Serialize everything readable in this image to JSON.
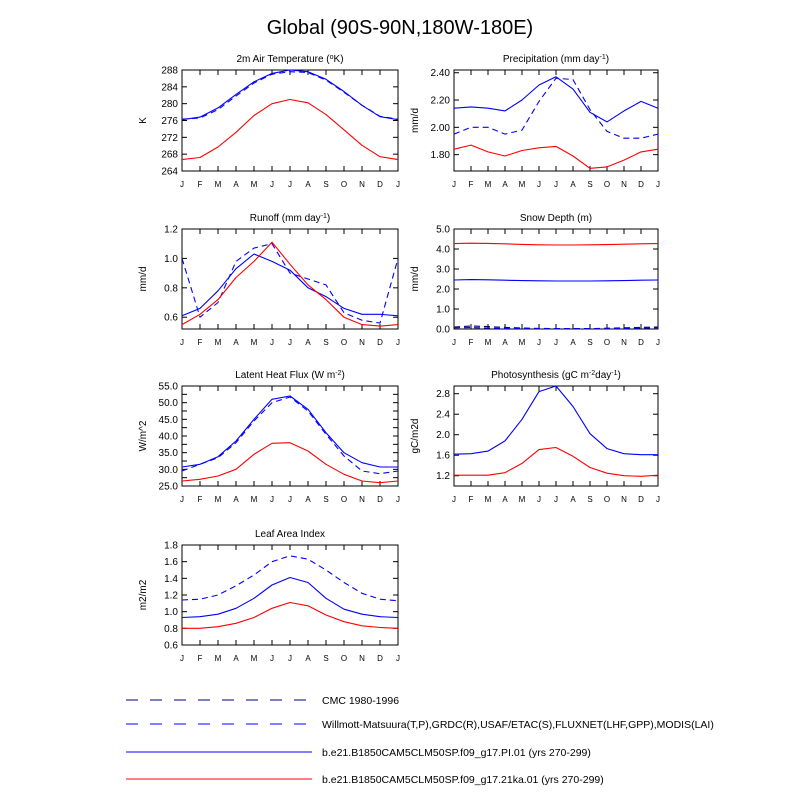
{
  "page": {
    "title": "Global (90S-90N,180W-180E)"
  },
  "months": [
    "J",
    "F",
    "M",
    "A",
    "M",
    "J",
    "J",
    "A",
    "S",
    "O",
    "N",
    "D",
    "J"
  ],
  "colors": {
    "blue": "#0000ff",
    "red": "#ff0000",
    "black": "#000000"
  },
  "legend": [
    {
      "label": "CMC 1980-1996",
      "color": "#000080",
      "dash": true
    },
    {
      "label": "Willmott-Matsuura(T,P),GRDC(R),USAF/ETAC(S),FLUXNET(LHF,GPP),MODIS(LAI)",
      "color": "#0000ff",
      "dash": true
    },
    {
      "label": "b.e21.B1850CAM5CLM50SP.f09_g17.PI.01 (yrs 270-299)",
      "color": "#0000ff",
      "dash": false
    },
    {
      "label": "b.e21.B1850CAM5CLM50SP.f09_g17.21ka.01 (yrs 270-299)",
      "color": "#ff0000",
      "dash": false
    }
  ],
  "chart_data": [
    {
      "type": "line",
      "title": "2m Air Temperature (",
      "title_sup": "o",
      "title_end": "K)",
      "ylabel": "K",
      "ylim": [
        264,
        288
      ],
      "yticks": [
        264,
        268,
        272,
        276,
        280,
        284,
        288
      ],
      "ytick_labels": [
        "264",
        "268",
        "272",
        "276",
        "280",
        "284",
        "288"
      ],
      "series": [
        {
          "name": "Willmott-Matsuura",
          "color": "#0000ff",
          "dash": true,
          "values": [
            276.3,
            276.6,
            278.6,
            281.8,
            284.9,
            287.0,
            287.6,
            287.4,
            285.6,
            282.7,
            279.6,
            277.0,
            276.3
          ]
        },
        {
          "name": "PI.01",
          "color": "#0000ff",
          "dash": false,
          "values": [
            276.2,
            276.8,
            279.0,
            282.2,
            285.2,
            287.2,
            288.0,
            287.6,
            285.8,
            282.9,
            279.6,
            276.9,
            276.2
          ]
        },
        {
          "name": "21ka.01",
          "color": "#ff0000",
          "dash": false,
          "values": [
            266.7,
            267.2,
            269.7,
            273.2,
            277.2,
            280.0,
            281.0,
            280.2,
            277.4,
            273.8,
            270.1,
            267.4,
            266.7
          ]
        }
      ]
    },
    {
      "type": "line",
      "title": "Precipitation (mm day",
      "title_sup": "-1",
      "title_end": ")",
      "ylabel": "mm/d",
      "ylim": [
        1.68,
        2.42
      ],
      "yticks": [
        1.8,
        2.0,
        2.2,
        2.4
      ],
      "ytick_labels": [
        "1.80",
        "2.00",
        "2.20",
        "2.40"
      ],
      "series": [
        {
          "name": "Willmott-Matsuura",
          "color": "#0000ff",
          "dash": true,
          "values": [
            1.95,
            2.0,
            2.0,
            1.95,
            1.98,
            2.19,
            2.36,
            2.35,
            2.13,
            1.97,
            1.92,
            1.92,
            1.95
          ]
        },
        {
          "name": "PI.01",
          "color": "#0000ff",
          "dash": false,
          "values": [
            2.14,
            2.15,
            2.14,
            2.12,
            2.2,
            2.31,
            2.37,
            2.28,
            2.11,
            2.04,
            2.12,
            2.19,
            2.14
          ]
        },
        {
          "name": "21ka.01",
          "color": "#ff0000",
          "dash": false,
          "values": [
            1.84,
            1.87,
            1.82,
            1.79,
            1.83,
            1.85,
            1.86,
            1.79,
            1.7,
            1.71,
            1.76,
            1.82,
            1.84
          ]
        }
      ]
    },
    {
      "type": "line",
      "title": "Runoff (mm day",
      "title_sup": "-1",
      "title_end": ")",
      "ylabel": "mm/d",
      "ylim": [
        0.52,
        1.2
      ],
      "yticks": [
        0.6,
        0.8,
        1.0,
        1.2
      ],
      "ytick_labels": [
        "0.6",
        "0.8",
        "1.0",
        "1.2"
      ],
      "series": [
        {
          "name": "Willmott-Matsuura",
          "color": "#0000ff",
          "dash": true,
          "values": [
            1.0,
            0.6,
            0.7,
            0.98,
            1.07,
            1.1,
            0.9,
            0.86,
            0.82,
            0.63,
            0.58,
            0.56,
            1.0
          ]
        },
        {
          "name": "PI.01",
          "color": "#0000ff",
          "dash": false,
          "values": [
            0.61,
            0.66,
            0.78,
            0.93,
            1.03,
            0.98,
            0.92,
            0.8,
            0.74,
            0.66,
            0.62,
            0.62,
            0.61
          ]
        },
        {
          "name": "21ka.01",
          "color": "#ff0000",
          "dash": false,
          "values": [
            0.55,
            0.62,
            0.72,
            0.87,
            0.98,
            1.11,
            0.96,
            0.82,
            0.72,
            0.6,
            0.55,
            0.54,
            0.55
          ]
        }
      ]
    },
    {
      "type": "line",
      "title": "Snow Depth (m)",
      "title_sup": "",
      "title_end": "",
      "ylabel": "mm/d",
      "ylim": [
        0,
        5
      ],
      "yticks": [
        0,
        1,
        2,
        3,
        4,
        5
      ],
      "ytick_labels": [
        "0.0",
        "1.0",
        "2.0",
        "3.0",
        "4.0",
        "5.0"
      ],
      "series": [
        {
          "name": "CMC 1980-1996",
          "color": "#000080",
          "dash": true,
          "values": [
            0.1,
            0.15,
            0.12,
            0.08,
            0.05,
            0.03,
            0.02,
            0.02,
            0.02,
            0.04,
            0.06,
            0.08,
            0.1
          ]
        },
        {
          "name": "Willmott-Matsuura",
          "color": "#0000ff",
          "dash": true,
          "values": [
            0.06,
            0.07,
            0.05,
            0.03,
            0.02,
            0.01,
            0.01,
            0.01,
            0.01,
            0.02,
            0.03,
            0.05,
            0.06
          ]
        },
        {
          "name": "PI.01",
          "color": "#0000ff",
          "dash": false,
          "values": [
            2.45,
            2.47,
            2.46,
            2.44,
            2.42,
            2.41,
            2.4,
            2.4,
            2.4,
            2.41,
            2.42,
            2.44,
            2.45
          ]
        },
        {
          "name": "21ka.01",
          "color": "#ff0000",
          "dash": false,
          "values": [
            4.27,
            4.29,
            4.28,
            4.26,
            4.23,
            4.21,
            4.2,
            4.2,
            4.21,
            4.22,
            4.24,
            4.26,
            4.27
          ]
        }
      ]
    },
    {
      "type": "line",
      "title": "Latent Heat Flux (W m",
      "title_sup": "-2",
      "title_end": ")",
      "ylabel": "W/m^2",
      "ylim": [
        25,
        55
      ],
      "yticks": [
        25,
        27.5,
        30,
        32.5,
        35,
        37.5,
        40,
        42.5,
        45,
        47.5,
        50,
        52.5,
        55
      ],
      "ytick_labels": [
        "25.0",
        "",
        "30.0",
        "",
        "35.0",
        "",
        "40.0",
        "",
        "45.0",
        "",
        "50.0",
        "",
        "55.0"
      ],
      "series": [
        {
          "name": "Willmott-Matsuura",
          "color": "#0000ff",
          "dash": true,
          "values": [
            29.5,
            31.5,
            33.5,
            38.0,
            44.5,
            50.0,
            51.7,
            47.5,
            40.5,
            34.0,
            29.5,
            28.7,
            29.5
          ]
        },
        {
          "name": "PI.01",
          "color": "#0000ff",
          "dash": false,
          "values": [
            30.7,
            31.5,
            33.8,
            38.5,
            45.0,
            51.0,
            52.0,
            48.0,
            41.0,
            35.0,
            32.0,
            30.7,
            30.7
          ]
        },
        {
          "name": "21ka.01",
          "color": "#ff0000",
          "dash": false,
          "values": [
            26.5,
            27.0,
            28.0,
            30.0,
            34.5,
            37.8,
            38.0,
            35.5,
            31.5,
            28.5,
            26.5,
            26.0,
            26.5
          ]
        }
      ]
    },
    {
      "type": "line",
      "title": "Photosynthesis (gC m",
      "title_sup": "-2",
      "title_mid": "day",
      "title_sup2": "-1",
      "title_end": ")",
      "ylabel": "gC/m2d",
      "ylim": [
        1.0,
        2.95
      ],
      "yticks": [
        1.2,
        1.6,
        2.0,
        2.4,
        2.8
      ],
      "ytick_labels": [
        "1.2",
        "1.6",
        "2.0",
        "2.4",
        "2.8"
      ],
      "series": [
        {
          "name": "PI.01",
          "color": "#0000ff",
          "dash": false,
          "values": [
            1.62,
            1.63,
            1.68,
            1.88,
            2.3,
            2.84,
            2.95,
            2.55,
            2.02,
            1.73,
            1.63,
            1.61,
            1.61
          ]
        },
        {
          "name": "21ka.01",
          "color": "#ff0000",
          "dash": false,
          "values": [
            1.21,
            1.21,
            1.21,
            1.26,
            1.44,
            1.71,
            1.75,
            1.58,
            1.36,
            1.25,
            1.2,
            1.19,
            1.21
          ]
        }
      ]
    },
    {
      "type": "line",
      "title": "Leaf Area Index",
      "title_sup": "",
      "title_end": "",
      "ylabel": "m2/m2",
      "ylim": [
        0.6,
        1.8
      ],
      "yticks": [
        0.6,
        0.8,
        1.0,
        1.2,
        1.4,
        1.6,
        1.8
      ],
      "ytick_labels": [
        "0.6",
        "0.8",
        "1.0",
        "1.2",
        "1.4",
        "1.6",
        "1.8"
      ],
      "series": [
        {
          "name": "Willmott-Matsuura",
          "color": "#0000ff",
          "dash": true,
          "values": [
            1.14,
            1.15,
            1.2,
            1.31,
            1.44,
            1.6,
            1.67,
            1.63,
            1.5,
            1.35,
            1.22,
            1.15,
            1.13
          ]
        },
        {
          "name": "PI.01",
          "color": "#0000ff",
          "dash": false,
          "values": [
            0.93,
            0.94,
            0.97,
            1.04,
            1.16,
            1.32,
            1.41,
            1.35,
            1.16,
            1.03,
            0.97,
            0.94,
            0.93
          ]
        },
        {
          "name": "21ka.01",
          "color": "#ff0000",
          "dash": false,
          "values": [
            0.8,
            0.8,
            0.82,
            0.86,
            0.93,
            1.04,
            1.11,
            1.07,
            0.96,
            0.88,
            0.83,
            0.81,
            0.8
          ]
        }
      ]
    }
  ]
}
